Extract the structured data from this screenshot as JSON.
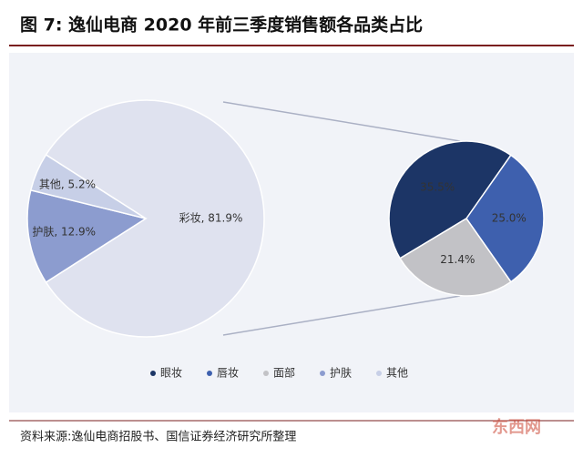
{
  "chart_data": {
    "type": "pie-of-pie",
    "title": "图 7: 逸仙电商 2020 年前三季度销售额各品类占比",
    "main": {
      "categories": [
        "彩妆",
        "护肤",
        "其他"
      ],
      "values": [
        81.9,
        12.9,
        5.2
      ],
      "value_labels": [
        "彩妆, 81.9%",
        "护肤, 12.9%",
        "其他, 5.2%"
      ],
      "colors": [
        "#dfe2ef",
        "#8c9ccf",
        "#c7cfe7"
      ]
    },
    "sub": {
      "categories": [
        "眼妆",
        "唇妆",
        "面部"
      ],
      "values": [
        35.5,
        25.0,
        21.4
      ],
      "value_labels": [
        "35.5%",
        "25.0%",
        "21.4%"
      ],
      "colors": [
        "#1c3566",
        "#3e60ae",
        "#c2c2c6"
      ]
    },
    "source": "资料来源:逸仙电商招股书、国信证券经济研究所整理",
    "watermark": "东西网"
  }
}
